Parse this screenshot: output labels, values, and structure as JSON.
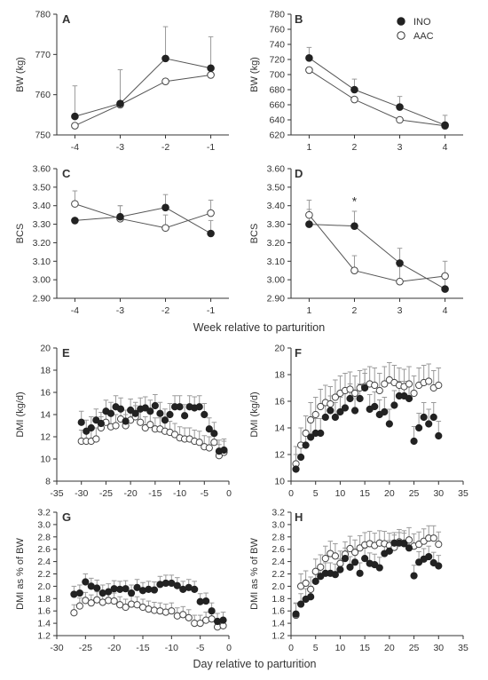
{
  "legend": [
    {
      "name": "INO",
      "color": "#222222",
      "fill": "filled"
    },
    {
      "name": "AAC",
      "color": "#222222",
      "fill": "open"
    }
  ],
  "shared_xlabels": {
    "top": "Week relative to parturition",
    "bottom": "Day relative to parturition"
  },
  "chart_data": [
    {
      "panel": "A",
      "type": "line",
      "ylabel": "BW (kg)",
      "xlim": [
        -4.4,
        -0.6
      ],
      "ylim": [
        750,
        780
      ],
      "xticks": [
        -4,
        -3,
        -2,
        -1
      ],
      "yticks": [
        750,
        760,
        770,
        780
      ],
      "series": [
        {
          "name": "INO",
          "x": [
            -4,
            -3,
            -2,
            -1
          ],
          "values": [
            754.6,
            757.8,
            769.0,
            766.6
          ],
          "err": [
            7.6,
            8.4,
            7.9,
            7.8
          ]
        },
        {
          "name": "AAC",
          "x": [
            -4,
            -3,
            -2,
            -1
          ],
          "values": [
            752.3,
            757.5,
            763.3,
            764.9
          ],
          "err": [
            0,
            0,
            0,
            0
          ]
        }
      ]
    },
    {
      "panel": "B",
      "type": "line",
      "ylabel": "BW (kg)",
      "xlim": [
        0.6,
        4.4
      ],
      "ylim": [
        620,
        780
      ],
      "xticks": [
        1,
        2,
        3,
        4
      ],
      "yticks": [
        620,
        640,
        660,
        680,
        700,
        720,
        740,
        760,
        780
      ],
      "series": [
        {
          "name": "INO",
          "x": [
            1,
            2,
            3,
            4
          ],
          "values": [
            722,
            680,
            657,
            633
          ],
          "err": [
            14,
            14,
            14,
            13
          ]
        },
        {
          "name": "AAC",
          "x": [
            1,
            2,
            3,
            4
          ],
          "values": [
            706,
            667,
            640,
            632
          ],
          "err": [
            0,
            0,
            0,
            0
          ]
        }
      ]
    },
    {
      "panel": "C",
      "type": "line",
      "ylabel": "BCS",
      "xlim": [
        -4.4,
        -0.6
      ],
      "ylim": [
        2.9,
        3.6
      ],
      "xticks": [
        -4,
        -3,
        -2,
        -1
      ],
      "yticks": [
        2.9,
        3.0,
        3.1,
        3.2,
        3.3,
        3.4,
        3.5,
        3.6
      ],
      "series": [
        {
          "name": "INO",
          "x": [
            -4,
            -3,
            -2,
            -1
          ],
          "values": [
            3.32,
            3.34,
            3.39,
            3.25
          ],
          "err": [
            0,
            0.06,
            0.07,
            0.07
          ]
        },
        {
          "name": "AAC",
          "x": [
            -4,
            -3,
            -2,
            -1
          ],
          "values": [
            3.41,
            3.33,
            3.28,
            3.36
          ],
          "err": [
            0.07,
            0.07,
            0.07,
            0.07
          ]
        }
      ]
    },
    {
      "panel": "D",
      "type": "line",
      "ylabel": "BCS",
      "xlim": [
        0.6,
        4.4
      ],
      "ylim": [
        2.9,
        3.6
      ],
      "xticks": [
        1,
        2,
        3,
        4
      ],
      "yticks": [
        2.9,
        3.0,
        3.1,
        3.2,
        3.3,
        3.4,
        3.5,
        3.6
      ],
      "annotations": [
        {
          "text": "*",
          "x": 2,
          "y": 3.4
        }
      ],
      "series": [
        {
          "name": "INO",
          "x": [
            1,
            2,
            3,
            4
          ],
          "values": [
            3.3,
            3.29,
            3.09,
            2.95
          ],
          "err": [
            0.08,
            0.08,
            0.08,
            0.08
          ]
        },
        {
          "name": "AAC",
          "x": [
            1,
            2,
            3,
            4
          ],
          "values": [
            3.35,
            3.05,
            2.99,
            3.02
          ],
          "err": [
            0.08,
            0.08,
            0.08,
            0.08
          ]
        }
      ]
    },
    {
      "panel": "E",
      "type": "scatter",
      "ylabel": "DMI (kg/d)",
      "xlim": [
        -35,
        0
      ],
      "ylim": [
        8,
        20
      ],
      "xticks": [
        -35,
        -30,
        -25,
        -20,
        -15,
        -10,
        -5,
        0
      ],
      "yticks": [
        8,
        10,
        12,
        14,
        16,
        18,
        20
      ],
      "series": [
        {
          "name": "INO",
          "err": 1.0,
          "x": [
            -30,
            -29,
            -28,
            -27,
            -26,
            -25,
            -24,
            -23,
            -22,
            -21,
            -20,
            -19,
            -18,
            -17,
            -16,
            -15,
            -14,
            -13,
            -12,
            -11,
            -10,
            -9,
            -8,
            -7,
            -6,
            -5,
            -4,
            -3,
            -2,
            -1
          ],
          "values": [
            13.3,
            12.5,
            12.8,
            13.5,
            13.2,
            14.3,
            14.1,
            14.7,
            14.5,
            13.4,
            14.4,
            14.1,
            14.5,
            14.6,
            14.3,
            14.8,
            14.1,
            13.5,
            14.0,
            14.7,
            14.7,
            13.9,
            14.7,
            14.6,
            14.7,
            14.0,
            12.7,
            12.3,
            10.7,
            10.8
          ]
        },
        {
          "name": "AAC",
          "err": 1.0,
          "x": [
            -30,
            -29,
            -28,
            -27,
            -26,
            -25,
            -24,
            -23,
            -22,
            -21,
            -20,
            -19,
            -18,
            -17,
            -16,
            -15,
            -14,
            -13,
            -12,
            -11,
            -10,
            -9,
            -8,
            -7,
            -6,
            -5,
            -4,
            -3,
            -2,
            -1
          ],
          "values": [
            11.6,
            11.6,
            11.6,
            11.8,
            12.8,
            13.3,
            12.9,
            13.0,
            13.6,
            13.0,
            13.5,
            13.8,
            13.3,
            12.8,
            13.1,
            12.7,
            12.7,
            12.5,
            12.4,
            12.2,
            11.9,
            11.8,
            11.8,
            11.6,
            11.5,
            11.1,
            11.0,
            11.5,
            10.3,
            10.6
          ]
        }
      ]
    },
    {
      "panel": "F",
      "type": "scatter",
      "ylabel": "DMI (kg/d)",
      "xlim": [
        0,
        35
      ],
      "ylim": [
        10,
        20
      ],
      "xticks": [
        0,
        5,
        10,
        15,
        20,
        25,
        30,
        35
      ],
      "yticks": [
        10,
        12,
        14,
        16,
        18,
        20
      ],
      "series": [
        {
          "name": "INO",
          "err": 1.1,
          "x": [
            1,
            2,
            3,
            4,
            5,
            6,
            7,
            8,
            9,
            10,
            11,
            12,
            13,
            14,
            15,
            16,
            17,
            18,
            19,
            20,
            21,
            22,
            23,
            24,
            25,
            26,
            27,
            28,
            29,
            30
          ],
          "values": [
            10.9,
            11.8,
            12.7,
            13.3,
            13.6,
            13.6,
            14.8,
            15.3,
            14.8,
            15.2,
            15.5,
            16.2,
            15.3,
            16.2,
            17.0,
            15.4,
            15.6,
            15.0,
            15.2,
            14.3,
            15.7,
            16.4,
            16.4,
            16.2,
            13.0,
            14.0,
            14.8,
            14.3,
            14.8,
            13.4
          ]
        },
        {
          "name": "AAC",
          "err": 1.3,
          "x": [
            1,
            2,
            3,
            4,
            5,
            6,
            7,
            8,
            9,
            10,
            11,
            12,
            13,
            14,
            15,
            16,
            17,
            18,
            19,
            20,
            21,
            22,
            23,
            24,
            25,
            26,
            27,
            28,
            29,
            30
          ],
          "values": [
            11.3,
            12.7,
            13.6,
            14.6,
            15.0,
            15.6,
            15.9,
            15.8,
            16.3,
            16.6,
            16.8,
            16.9,
            16.6,
            17.0,
            17.1,
            17.3,
            17.2,
            16.8,
            17.3,
            17.6,
            17.4,
            17.2,
            17.1,
            17.3,
            16.6,
            17.2,
            17.4,
            17.5,
            17.0,
            17.2
          ]
        }
      ]
    },
    {
      "panel": "G",
      "type": "scatter",
      "ylabel": "DMI as % of BW",
      "xlim": [
        -30,
        0
      ],
      "ylim": [
        1.2,
        3.2
      ],
      "xticks": [
        -30,
        -25,
        -20,
        -15,
        -10,
        -5,
        0
      ],
      "yticks": [
        1.2,
        1.4,
        1.6,
        1.8,
        2.0,
        2.2,
        2.4,
        2.6,
        2.8,
        3.0,
        3.2
      ],
      "series": [
        {
          "name": "INO",
          "err": 0.13,
          "x": [
            -27,
            -26,
            -25,
            -24,
            -23,
            -22,
            -21,
            -20,
            -19,
            -18,
            -17,
            -16,
            -15,
            -14,
            -13,
            -12,
            -11,
            -10,
            -9,
            -8,
            -7,
            -6,
            -5,
            -4,
            -3,
            -2,
            -1
          ],
          "values": [
            1.87,
            1.89,
            2.07,
            2.0,
            1.97,
            1.89,
            1.91,
            1.96,
            1.95,
            1.96,
            1.89,
            1.98,
            1.93,
            1.95,
            1.94,
            2.03,
            2.05,
            2.05,
            2.01,
            1.95,
            1.98,
            1.95,
            1.75,
            1.76,
            1.6,
            1.43,
            1.45
          ]
        },
        {
          "name": "AAC",
          "err": 0.13,
          "x": [
            -27,
            -26,
            -25,
            -24,
            -23,
            -22,
            -21,
            -20,
            -19,
            -18,
            -17,
            -16,
            -15,
            -14,
            -13,
            -12,
            -11,
            -10,
            -9,
            -8,
            -7,
            -6,
            -5,
            -4,
            -3,
            -2,
            -1
          ],
          "values": [
            1.57,
            1.68,
            1.77,
            1.73,
            1.78,
            1.74,
            1.77,
            1.76,
            1.7,
            1.66,
            1.71,
            1.7,
            1.66,
            1.63,
            1.61,
            1.6,
            1.58,
            1.6,
            1.52,
            1.54,
            1.49,
            1.4,
            1.4,
            1.45,
            1.47,
            1.34,
            1.36
          ]
        }
      ]
    },
    {
      "panel": "H",
      "type": "scatter",
      "ylabel": "DMI as % of BW",
      "xlim": [
        0,
        35
      ],
      "ylim": [
        1.2,
        3.2
      ],
      "xticks": [
        0,
        5,
        10,
        15,
        20,
        25,
        30,
        35
      ],
      "yticks": [
        1.2,
        1.4,
        1.6,
        1.8,
        2.0,
        2.2,
        2.4,
        2.6,
        2.8,
        3.0,
        3.2
      ],
      "series": [
        {
          "name": "INO",
          "err": 0.17,
          "x": [
            1,
            2,
            3,
            4,
            5,
            6,
            7,
            8,
            9,
            10,
            11,
            12,
            13,
            14,
            15,
            16,
            17,
            18,
            19,
            20,
            21,
            22,
            23,
            24,
            25,
            26,
            27,
            28,
            29,
            30
          ],
          "values": [
            1.55,
            1.71,
            1.79,
            1.83,
            2.08,
            2.16,
            2.21,
            2.21,
            2.19,
            2.27,
            2.45,
            2.31,
            2.39,
            2.21,
            2.45,
            2.37,
            2.35,
            2.3,
            2.53,
            2.57,
            2.7,
            2.7,
            2.69,
            2.62,
            2.17,
            2.39,
            2.44,
            2.48,
            2.38,
            2.33
          ]
        },
        {
          "name": "AAC",
          "err": 0.2,
          "x": [
            1,
            2,
            3,
            4,
            5,
            6,
            7,
            8,
            9,
            10,
            11,
            12,
            13,
            14,
            15,
            16,
            17,
            18,
            19,
            20,
            21,
            22,
            23,
            24,
            25,
            26,
            27,
            28,
            29,
            30
          ],
          "values": [
            1.53,
            2.0,
            2.05,
            1.95,
            2.24,
            2.31,
            2.45,
            2.53,
            2.49,
            2.37,
            2.52,
            2.61,
            2.55,
            2.62,
            2.67,
            2.69,
            2.66,
            2.7,
            2.69,
            2.66,
            2.63,
            2.72,
            2.7,
            2.75,
            2.65,
            2.68,
            2.73,
            2.78,
            2.78,
            2.68
          ]
        }
      ]
    }
  ]
}
